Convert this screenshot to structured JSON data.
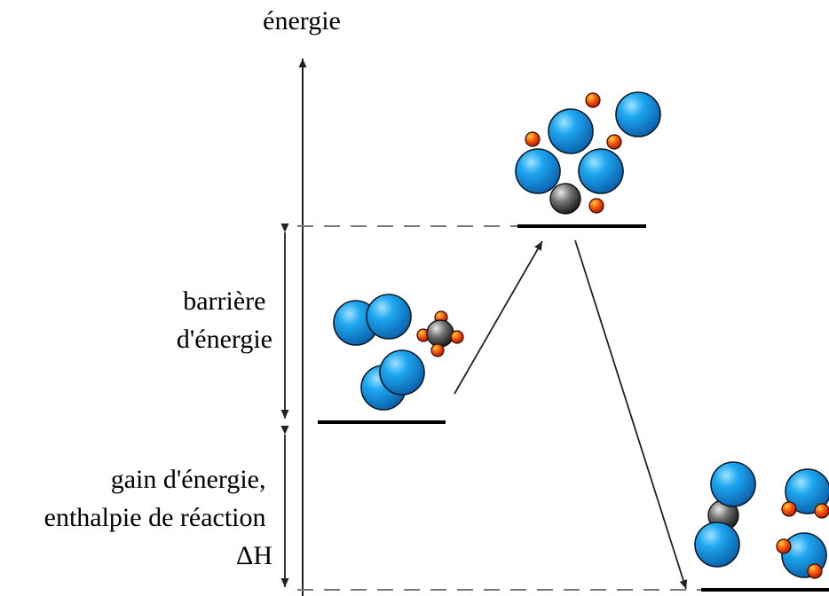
{
  "labels": {
    "energy_axis": "énergie",
    "barrier": [
      "barrière",
      "d'énergie"
    ],
    "gain": [
      "gain d'énergie,",
      "enthalpie de réaction",
      "ΔH"
    ]
  },
  "colors": {
    "large_atom": "#1ea7f0",
    "small_atom": "#e8520c",
    "central_atom": "#555555",
    "level_line": "#000000",
    "dashed_line": "#777777"
  }
}
